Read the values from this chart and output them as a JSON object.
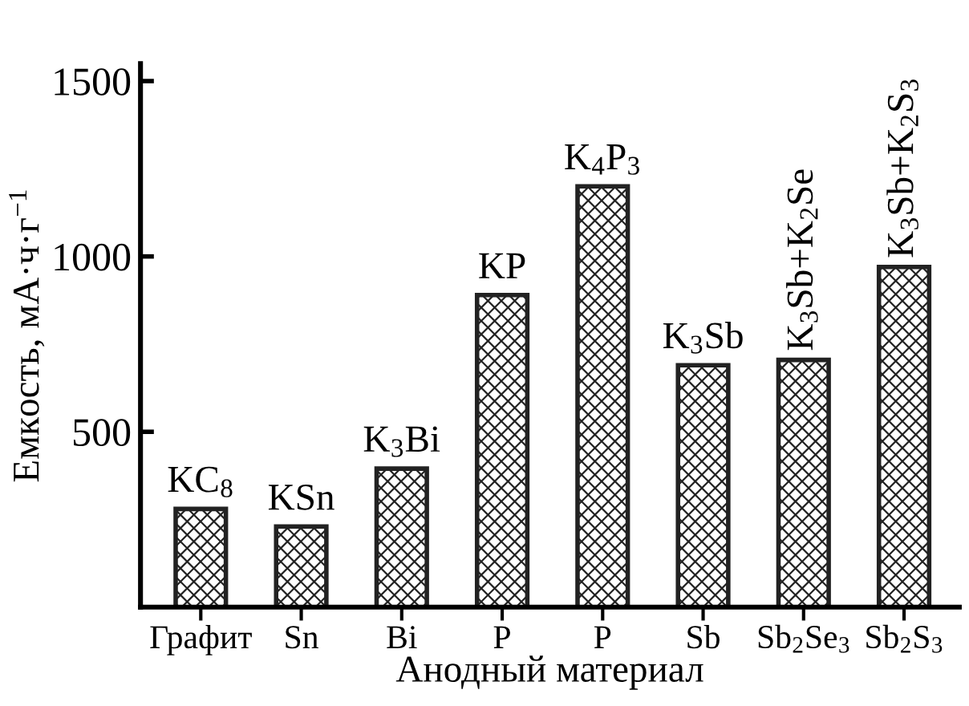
{
  "chart_data": {
    "type": "bar",
    "xlabel": "Анодный материал",
    "ylabel": "Емкость, мА·ч·г$^{−1}$",
    "categories": [
      "Графит",
      "Sn",
      "Bi",
      "P",
      "P",
      "Sb",
      "Sb$_{2}$Se$_{3}$",
      "Sb$_{2}$S$_{3}$"
    ],
    "values": [
      280,
      230,
      395,
      890,
      1200,
      690,
      705,
      970
    ],
    "annotations": [
      "KC$_{8}$",
      "KSn",
      "K$_{3}$Bi",
      "KP",
      "K$_{4}$P$_{3}$",
      "K$_{3}$Sb",
      "K$_{3}$Sb+K$_{2}$Se",
      "K$_{3}$Sb+K$_{2}$S$_{3}$"
    ],
    "color": "#222222",
    "ylim": [
      0,
      1550
    ],
    "yticks": [
      500,
      1000,
      1500
    ],
    "grid": false
  }
}
